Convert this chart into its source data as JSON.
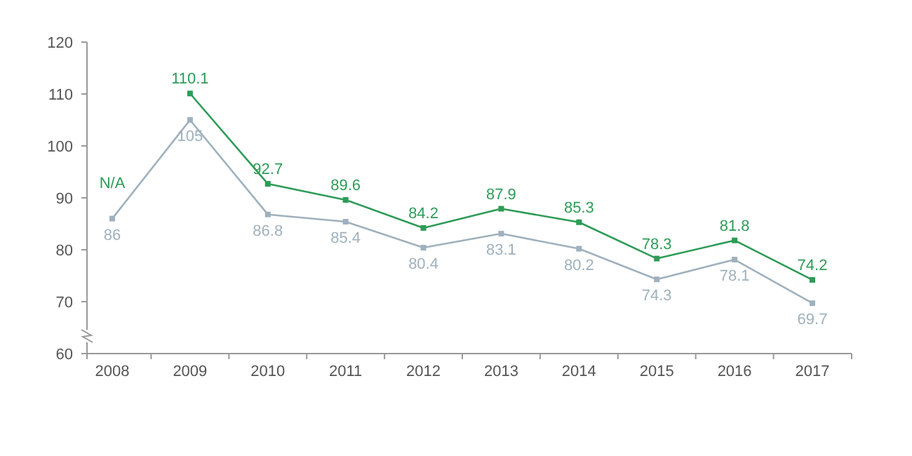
{
  "chart_data": {
    "type": "line",
    "categories": [
      "2008",
      "2009",
      "2010",
      "2011",
      "2012",
      "2013",
      "2014",
      "2015",
      "2016",
      "2017"
    ],
    "series": [
      {
        "color": "#9fb1bd",
        "values": [
          86,
          105,
          86.8,
          85.4,
          80.4,
          83.1,
          80.2,
          74.3,
          78.1,
          69.7
        ],
        "value_labels": [
          "86",
          "105",
          "86.8",
          "85.4",
          "80.4",
          "83.1",
          "80.2",
          "74.3",
          "78.1",
          "69.7"
        ]
      },
      {
        "color": "#2e9b57",
        "values": [
          null,
          110.1,
          92.7,
          89.6,
          84.2,
          87.9,
          85.3,
          78.3,
          81.8,
          74.2
        ],
        "value_labels": [
          "N/A",
          "110.1",
          "92.7",
          "89.6",
          "84.2",
          "87.9",
          "85.3",
          "78.3",
          "81.8",
          "74.2"
        ]
      }
    ],
    "ylim": [
      60,
      120
    ],
    "yticks": [
      60,
      70,
      80,
      90,
      100,
      110,
      120
    ],
    "grid": false,
    "marker": "square",
    "line_style": "solid"
  }
}
